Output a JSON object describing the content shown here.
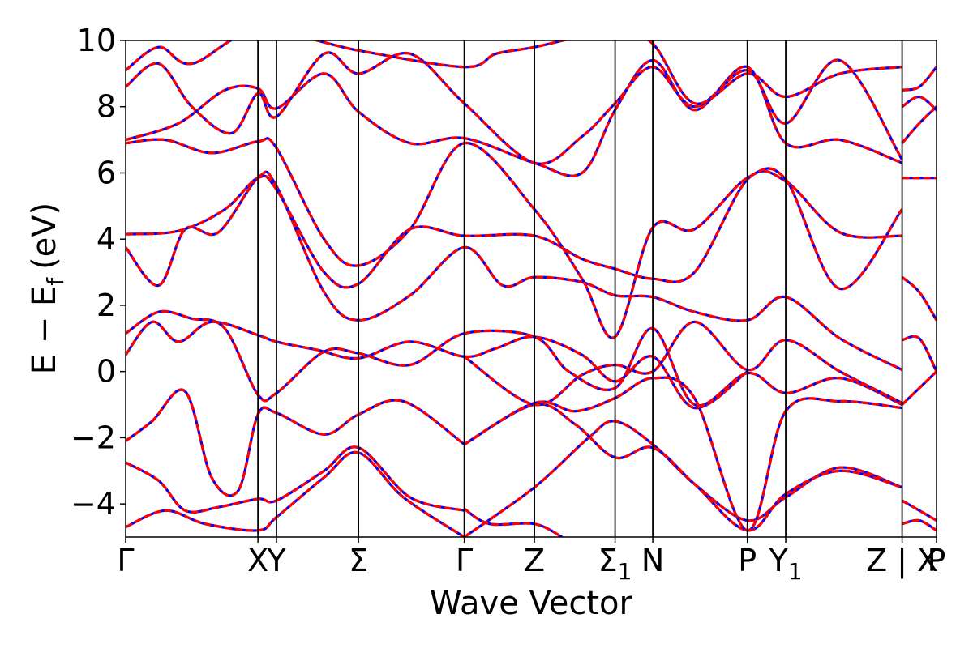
{
  "chart_data": {
    "type": "line",
    "xlabel": "Wave Vector",
    "ylabel_main": "E − E",
    "ylabel_sub": "f",
    "ylabel_unit": "(eV)",
    "ylim": [
      -5,
      10
    ],
    "yticks": [
      {
        "value": -4,
        "label": "−4"
      },
      {
        "value": -2,
        "label": "−2"
      },
      {
        "value": 0,
        "label": "0"
      },
      {
        "value": 2,
        "label": "2"
      },
      {
        "value": 4,
        "label": "4"
      },
      {
        "value": 6,
        "label": "6"
      },
      {
        "value": 8,
        "label": "8"
      },
      {
        "value": 10,
        "label": "10"
      }
    ],
    "kpoints": [
      {
        "x": 0.0,
        "label": "Γ"
      },
      {
        "x": 2.0,
        "label": "X"
      },
      {
        "x": 2.28,
        "label": "Y"
      },
      {
        "x": 3.52,
        "label": "Σ"
      },
      {
        "x": 5.12,
        "label": "Γ"
      },
      {
        "x": 6.18,
        "label": "Z"
      },
      {
        "x": 7.4,
        "label": "Σ",
        "sub": "1"
      },
      {
        "x": 7.97,
        "label": "N"
      },
      {
        "x": 9.4,
        "label": "P"
      },
      {
        "x": 9.98,
        "label": "Y",
        "sub": "1"
      },
      {
        "x": 11.74,
        "label": "Z | X"
      },
      {
        "x": 12.26,
        "label": "P"
      }
    ],
    "xlim": [
      0,
      12.26
    ],
    "series_colors": {
      "band_dft": "#ff0000",
      "band_fit": "#0000ff"
    },
    "bands": [
      [
        [
          0,
          -4.7
        ],
        [
          0.6,
          -4.2
        ],
        [
          1.2,
          -4.6
        ],
        [
          2.0,
          -4.8
        ],
        [
          2.28,
          -4.4
        ],
        [
          3.0,
          -3.2
        ],
        [
          3.52,
          -2.45
        ],
        [
          4.2,
          -3.8
        ],
        [
          5.12,
          -5.0
        ]
      ],
      [
        [
          0,
          -2.75
        ],
        [
          0.5,
          -3.3
        ],
        [
          0.9,
          -4.2
        ],
        [
          1.4,
          -4.1
        ],
        [
          2.0,
          -3.85
        ],
        [
          2.28,
          -3.9
        ],
        [
          3.0,
          -3.0
        ],
        [
          3.52,
          -2.3
        ],
        [
          4.3,
          -3.8
        ],
        [
          5.12,
          -4.2
        ]
      ],
      [
        [
          0,
          -2.1
        ],
        [
          0.4,
          -1.5
        ],
        [
          0.9,
          -0.6
        ],
        [
          1.3,
          -3.2
        ],
        [
          1.7,
          -3.6
        ],
        [
          2.0,
          -1.3
        ],
        [
          2.28,
          -1.25
        ],
        [
          3.0,
          -1.9
        ],
        [
          3.52,
          -1.3
        ],
        [
          4.2,
          -0.9
        ],
        [
          5.12,
          -2.2
        ]
      ],
      [
        [
          0,
          0.5
        ],
        [
          0.4,
          1.5
        ],
        [
          0.8,
          0.9
        ],
        [
          1.3,
          1.5
        ],
        [
          2.0,
          1.1
        ],
        [
          2.28,
          0.9
        ],
        [
          2.9,
          0.65
        ],
        [
          3.52,
          0.4
        ],
        [
          4.3,
          0.9
        ],
        [
          5.12,
          0.45
        ],
        [
          5.6,
          0.7
        ],
        [
          6.18,
          1.05
        ],
        [
          6.9,
          0.5
        ],
        [
          7.4,
          -0.3
        ],
        [
          7.97,
          0.45
        ],
        [
          8.6,
          -1.1
        ],
        [
          9.4,
          0.0
        ]
      ],
      [
        [
          0,
          1.15
        ],
        [
          0.5,
          1.8
        ],
        [
          1.0,
          1.6
        ],
        [
          1.5,
          1.3
        ],
        [
          2.0,
          -0.7
        ],
        [
          2.28,
          -0.65
        ],
        [
          3.0,
          0.6
        ],
        [
          3.52,
          0.55
        ],
        [
          4.3,
          0.2
        ],
        [
          5.12,
          1.15
        ],
        [
          6.18,
          1.05
        ],
        [
          6.7,
          0.0
        ],
        [
          7.4,
          -0.5
        ],
        [
          7.97,
          1.3
        ],
        [
          8.6,
          -1.0
        ],
        [
          9.4,
          -0.05
        ],
        [
          9.98,
          -0.65
        ],
        [
          10.8,
          -0.2
        ],
        [
          11.74,
          -1.0
        ]
      ],
      [
        [
          0,
          3.75
        ],
        [
          0.5,
          2.6
        ],
        [
          0.9,
          4.3
        ],
        [
          1.4,
          4.2
        ],
        [
          2.0,
          5.85
        ],
        [
          2.28,
          5.6
        ],
        [
          3.0,
          2.4
        ],
        [
          3.52,
          1.55
        ],
        [
          4.3,
          2.3
        ],
        [
          5.12,
          3.75
        ],
        [
          5.7,
          2.6
        ],
        [
          6.18,
          2.85
        ],
        [
          6.9,
          2.7
        ],
        [
          7.4,
          2.3
        ],
        [
          7.97,
          2.25
        ],
        [
          8.6,
          1.8
        ],
        [
          9.4,
          1.55
        ],
        [
          9.98,
          2.25
        ],
        [
          10.8,
          1.0
        ],
        [
          11.74,
          0.05
        ]
      ],
      [
        [
          0,
          4.15
        ],
        [
          0.8,
          4.25
        ],
        [
          1.5,
          4.9
        ],
        [
          2.0,
          5.85
        ],
        [
          2.28,
          5.5
        ],
        [
          3.0,
          3.0
        ],
        [
          3.52,
          2.65
        ],
        [
          4.3,
          4.3
        ],
        [
          5.12,
          4.1
        ],
        [
          6.18,
          4.1
        ],
        [
          6.9,
          3.4
        ],
        [
          7.4,
          3.1
        ],
        [
          7.97,
          2.8
        ],
        [
          8.6,
          3.0
        ],
        [
          9.4,
          5.8
        ],
        [
          9.98,
          5.75
        ],
        [
          10.8,
          4.2
        ],
        [
          11.74,
          4.1
        ]
      ],
      [
        [
          0,
          6.9
        ],
        [
          0.6,
          7.0
        ],
        [
          1.3,
          6.6
        ],
        [
          2.0,
          6.95
        ],
        [
          2.28,
          6.75
        ],
        [
          3.0,
          4.0
        ],
        [
          3.52,
          3.2
        ],
        [
          4.3,
          4.3
        ],
        [
          5.12,
          6.9
        ],
        [
          6.18,
          4.9
        ],
        [
          6.9,
          2.8
        ],
        [
          7.4,
          1.05
        ],
        [
          7.97,
          4.35
        ],
        [
          8.6,
          4.3
        ],
        [
          9.4,
          5.85
        ],
        [
          9.98,
          5.8
        ],
        [
          10.8,
          2.5
        ],
        [
          11.74,
          4.9
        ]
      ],
      [
        [
          0,
          7.0
        ],
        [
          0.8,
          7.5
        ],
        [
          1.5,
          8.5
        ],
        [
          2.0,
          8.55
        ],
        [
          2.28,
          7.95
        ],
        [
          3.0,
          9.0
        ],
        [
          3.52,
          7.85
        ],
        [
          4.3,
          6.9
        ],
        [
          5.12,
          7.05
        ],
        [
          6.18,
          6.3
        ],
        [
          6.9,
          6.0
        ],
        [
          7.4,
          7.9
        ],
        [
          7.97,
          9.4
        ],
        [
          8.6,
          7.9
        ],
        [
          9.4,
          9.2
        ],
        [
          9.98,
          6.9
        ],
        [
          10.8,
          7.0
        ],
        [
          11.74,
          6.3
        ]
      ],
      [
        [
          0,
          8.6
        ],
        [
          0.5,
          9.3
        ],
        [
          1.0,
          8.0
        ],
        [
          1.6,
          7.2
        ],
        [
          2.0,
          8.4
        ],
        [
          2.28,
          7.7
        ],
        [
          3.0,
          9.6
        ],
        [
          3.52,
          9.0
        ],
        [
          4.3,
          9.6
        ],
        [
          5.12,
          8.1
        ],
        [
          6.18,
          6.3
        ],
        [
          6.9,
          7.1
        ],
        [
          7.4,
          8.1
        ],
        [
          7.97,
          9.2
        ],
        [
          8.6,
          8.0
        ],
        [
          9.4,
          9.1
        ],
        [
          9.98,
          7.5
        ],
        [
          10.8,
          9.4
        ],
        [
          11.74,
          6.4
        ]
      ],
      [
        [
          0,
          9.1
        ],
        [
          0.5,
          9.8
        ],
        [
          1.0,
          9.3
        ],
        [
          2.0,
          10.3
        ],
        [
          3.52,
          9.7
        ],
        [
          5.12,
          9.2
        ],
        [
          5.6,
          9.6
        ],
        [
          6.18,
          9.8
        ],
        [
          7.4,
          10.3
        ],
        [
          7.97,
          9.9
        ],
        [
          8.6,
          8.1
        ],
        [
          9.4,
          9.0
        ],
        [
          9.98,
          8.3
        ],
        [
          10.8,
          9.0
        ],
        [
          11.74,
          9.2
        ]
      ],
      [
        [
          5.12,
          -5.0
        ],
        [
          6.18,
          -3.5
        ],
        [
          7.0,
          -2.0
        ],
        [
          7.4,
          -1.5
        ],
        [
          7.97,
          -2.2
        ],
        [
          8.6,
          -3.4
        ],
        [
          9.4,
          -4.5
        ],
        [
          9.98,
          -3.8
        ],
        [
          10.8,
          -2.9
        ],
        [
          11.74,
          -3.5
        ]
      ],
      [
        [
          5.12,
          -2.2
        ],
        [
          6.18,
          -1.0
        ],
        [
          6.8,
          -1.6
        ],
        [
          7.4,
          -2.6
        ],
        [
          7.97,
          -2.3
        ],
        [
          8.6,
          -3.4
        ],
        [
          9.4,
          -4.8
        ],
        [
          9.98,
          -3.7
        ],
        [
          10.8,
          -3.0
        ],
        [
          11.74,
          -3.5
        ]
      ],
      [
        [
          5.12,
          -2.2
        ],
        [
          6.18,
          -0.95
        ],
        [
          6.8,
          -1.2
        ],
        [
          7.4,
          -0.8
        ],
        [
          7.97,
          -0.2
        ],
        [
          8.6,
          -0.8
        ],
        [
          9.4,
          -4.8
        ],
        [
          9.98,
          -1.2
        ],
        [
          10.8,
          -0.9
        ],
        [
          11.74,
          -1.1
        ]
      ],
      [
        [
          5.12,
          0.45
        ],
        [
          6.18,
          -1.0
        ],
        [
          6.9,
          -0.1
        ],
        [
          7.4,
          0.2
        ],
        [
          7.97,
          0.0
        ],
        [
          8.6,
          1.5
        ],
        [
          9.4,
          0.05
        ],
        [
          9.98,
          0.95
        ],
        [
          10.8,
          0.0
        ],
        [
          11.74,
          -0.95
        ]
      ],
      [
        [
          5.12,
          -4.15
        ],
        [
          5.5,
          -4.6
        ],
        [
          6.18,
          -4.6
        ],
        [
          6.6,
          -5.0
        ]
      ],
      [
        [
          11.74,
          -3.9
        ],
        [
          12.0,
          -4.2
        ],
        [
          12.26,
          -4.5
        ]
      ],
      [
        [
          11.74,
          -4.6
        ],
        [
          12.0,
          -4.5
        ],
        [
          12.26,
          -4.8
        ]
      ],
      [
        [
          11.74,
          -1.0
        ],
        [
          12.0,
          -0.5
        ],
        [
          12.26,
          0.0
        ]
      ],
      [
        [
          11.74,
          0.95
        ],
        [
          12.0,
          1.0
        ],
        [
          12.26,
          0.0
        ]
      ],
      [
        [
          11.74,
          2.85
        ],
        [
          12.0,
          2.4
        ],
        [
          12.26,
          1.55
        ]
      ],
      [
        [
          11.74,
          5.85
        ],
        [
          12.0,
          5.85
        ],
        [
          12.26,
          5.85
        ]
      ],
      [
        [
          11.74,
          6.9
        ],
        [
          12.0,
          7.5
        ],
        [
          12.26,
          8.0
        ]
      ],
      [
        [
          11.74,
          8.5
        ],
        [
          12.0,
          8.6
        ],
        [
          12.26,
          9.2
        ]
      ],
      [
        [
          11.74,
          8.0
        ],
        [
          12.0,
          8.3
        ],
        [
          12.26,
          7.9
        ]
      ]
    ]
  }
}
